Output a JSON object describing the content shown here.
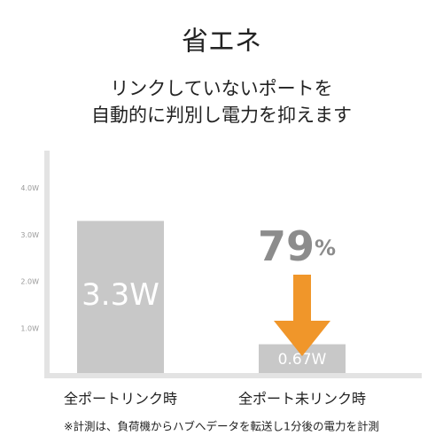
{
  "chart_data": {
    "type": "bar",
    "title": "省エネ",
    "subtitle": [
      "リンクしていないポートを",
      "自動的に判別し電力を抑えます"
    ],
    "categories": [
      "全ポートリンク時",
      "全ポート未リンク時"
    ],
    "values": [
      3.3,
      0.67
    ],
    "value_labels": [
      "3.3W",
      "0.67W"
    ],
    "color": "#c8c8c8",
    "ylim": [
      0,
      4.8
    ],
    "yticks": [
      {
        "value": 1,
        "label": "1.0W"
      },
      {
        "value": 2,
        "label": "2.0W"
      },
      {
        "value": 3,
        "label": "3.0W"
      },
      {
        "value": 4,
        "label": "4.0W"
      }
    ],
    "annotation": {
      "number": "79",
      "unit": "%",
      "color": "#f0962a"
    },
    "footnote": "※計測は、負荷機からハブへデータを転送し1分後の電力を計測"
  }
}
